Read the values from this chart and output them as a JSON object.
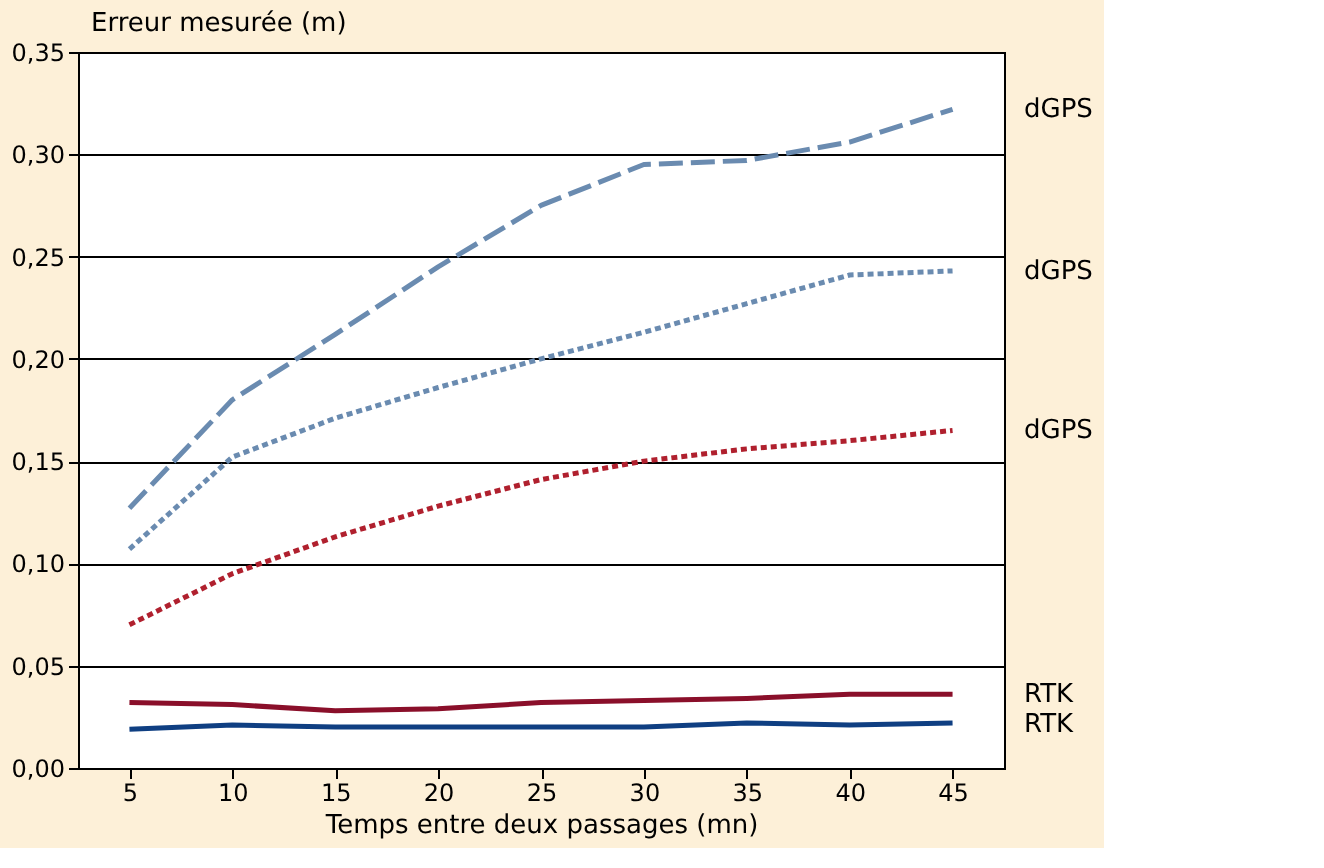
{
  "chart_data": {
    "type": "line",
    "xlabel": "Temps entre deux passages (mn)",
    "ylabel": "Erreur mesurée (m)",
    "x": [
      5,
      10,
      15,
      20,
      25,
      30,
      35,
      40,
      45
    ],
    "series": [
      {
        "name": "dGPS",
        "color": "#6a8bb0",
        "line_style": "dashed",
        "values": [
          0.127,
          0.18,
          0.212,
          0.245,
          0.275,
          0.295,
          0.297,
          0.306,
          0.322
        ]
      },
      {
        "name": "dGPS",
        "color": "#6a8bb0",
        "line_style": "dotted",
        "values": [
          0.107,
          0.152,
          0.171,
          0.186,
          0.2,
          0.213,
          0.227,
          0.241,
          0.243
        ]
      },
      {
        "name": "dGPS",
        "color": "#b0202e",
        "line_style": "dotted",
        "values": [
          0.07,
          0.095,
          0.113,
          0.128,
          0.141,
          0.15,
          0.156,
          0.16,
          0.165
        ]
      },
      {
        "name": "RTK",
        "color": "#8a0f2a",
        "line_style": "solid",
        "values": [
          0.032,
          0.031,
          0.028,
          0.029,
          0.032,
          0.033,
          0.034,
          0.036,
          0.036
        ]
      },
      {
        "name": "RTK",
        "color": "#0f3f82",
        "line_style": "solid",
        "values": [
          0.019,
          0.021,
          0.02,
          0.02,
          0.02,
          0.02,
          0.022,
          0.021,
          0.022
        ]
      }
    ],
    "xlim": [
      2.5,
      47.5
    ],
    "xticks": [
      5,
      10,
      15,
      20,
      25,
      30,
      35,
      40,
      45
    ],
    "ylim": [
      0,
      0.35
    ],
    "yticks": [
      {
        "value": 0,
        "label": "0,00"
      },
      {
        "value": 0.05,
        "label": "0,05"
      },
      {
        "value": 0.1,
        "label": "0,10"
      },
      {
        "value": 0.15,
        "label": "0,15"
      },
      {
        "value": 0.2,
        "label": "0,20"
      },
      {
        "value": 0.25,
        "label": "0,25"
      },
      {
        "value": 0.3,
        "label": "0,30"
      },
      {
        "value": 0.35,
        "label": "0,35"
      }
    ],
    "grid": "y",
    "marker": "none"
  }
}
